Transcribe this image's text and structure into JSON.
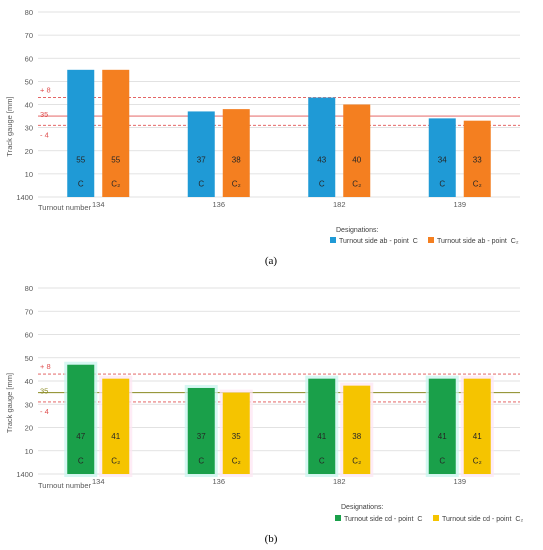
{
  "chart_data": [
    {
      "type": "bar",
      "panel_label": "(a)",
      "title": "",
      "xlabel": "Turnout number",
      "ylabel": "Track gauge [mm]",
      "yticks": [
        "1400",
        "10",
        "20",
        "30",
        "40",
        "50",
        "60",
        "70",
        "80"
      ],
      "ylim": [
        0,
        80
      ],
      "grid": true,
      "categories": [
        "134",
        "136",
        "182",
        "139"
      ],
      "legend_title": "Designations:",
      "legend_position": "bottom-right",
      "series": [
        {
          "name": "Turnout side ab - point C",
          "legend_label": "Turnout side ab - point",
          "legend_symbol": "C",
          "point": "C",
          "color": "#1f9ad6",
          "values": [
            55,
            37,
            43,
            34
          ]
        },
        {
          "name": "Turnout side ab - point C₂",
          "legend_label": "Turnout side ab - point",
          "legend_symbol": "C₂",
          "point": "C₂",
          "color": "#f47f20",
          "values": [
            55,
            38,
            40,
            33
          ]
        }
      ],
      "reference_lines": [
        {
          "label": "+ 8",
          "value": 43,
          "style": "dashed",
          "color": "#e05050"
        },
        {
          "label": "35",
          "value": 35,
          "style": "solid",
          "color": "#e05050"
        },
        {
          "label": "- 4",
          "value": 31,
          "style": "dashed",
          "color": "#e05050"
        }
      ]
    },
    {
      "type": "bar",
      "panel_label": "(b)",
      "title": "",
      "xlabel": "Turnout number",
      "ylabel": "Track gauge [mm]",
      "yticks": [
        "1400",
        "10",
        "20",
        "30",
        "40",
        "50",
        "60",
        "70",
        "80"
      ],
      "ylim": [
        0,
        80
      ],
      "grid": true,
      "categories": [
        "134",
        "136",
        "182",
        "139"
      ],
      "legend_title": "Designations:",
      "legend_position": "bottom-right",
      "series": [
        {
          "name": "Turnout side cd - point C",
          "legend_label": "Turnout side cd - point",
          "legend_symbol": "C",
          "point": "C",
          "color": "#1aa04a",
          "values": [
            47,
            37,
            41,
            41
          ]
        },
        {
          "name": "Turnout side cd - point C₂",
          "legend_label": "Turnout side cd - point",
          "legend_symbol": "C₂",
          "point": "C₂",
          "color": "#f5c400",
          "values": [
            41,
            35,
            38,
            41
          ]
        }
      ],
      "reference_lines": [
        {
          "label": "+ 8",
          "value": 43,
          "style": "dashed",
          "color": "#e05050"
        },
        {
          "label": "35",
          "value": 35,
          "style": "solid",
          "color": "#8a8a20"
        },
        {
          "label": "- 4",
          "value": 31,
          "style": "dashed",
          "color": "#e05050"
        }
      ]
    }
  ]
}
